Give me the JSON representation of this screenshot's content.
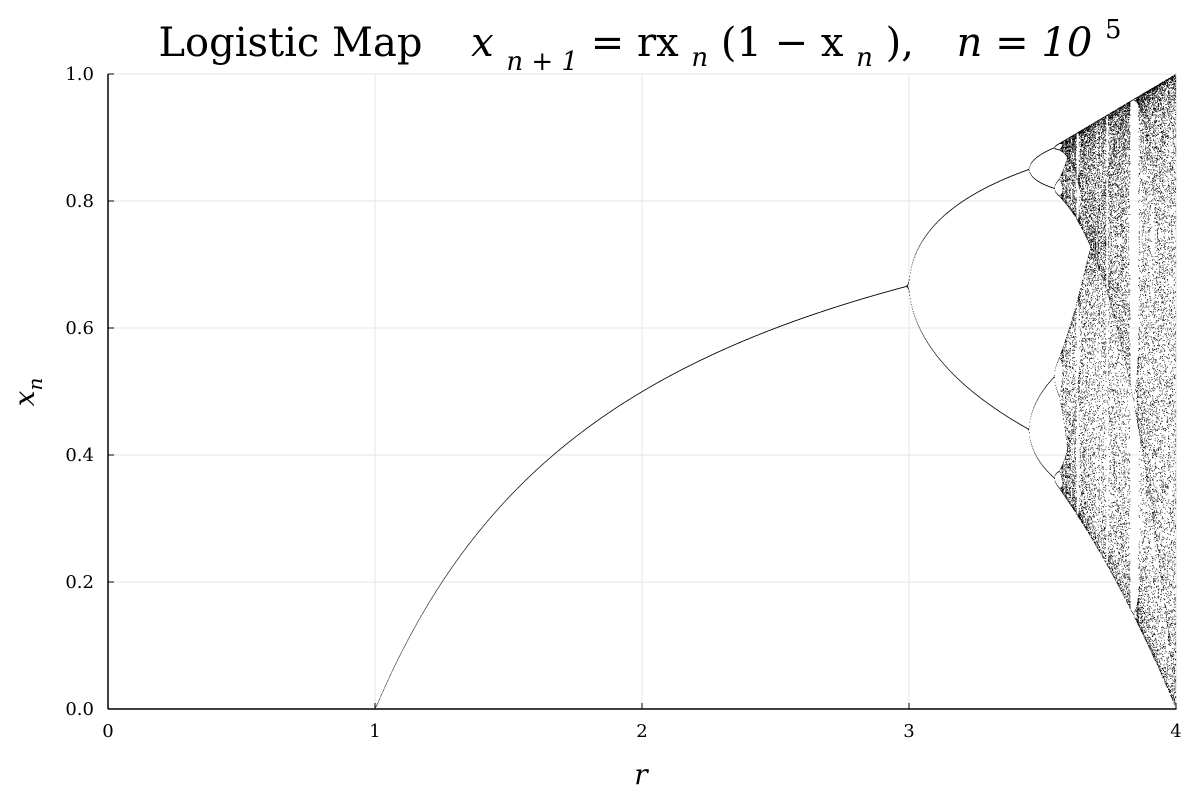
{
  "chart_data": {
    "type": "scatter",
    "title": {
      "prefix": "Logistic Map",
      "equation_lhs_var": "x",
      "equation_lhs_sub": "n + 1",
      "equation_rhs_a": " = rx",
      "equation_rhs_sub1": "n",
      "equation_rhs_b": "(1 − x",
      "equation_rhs_sub2": "n",
      "equation_rhs_c": "),",
      "n_label": "n = 10",
      "n_exp": "5"
    },
    "xlabel": "r",
    "ylabel_var": "x",
    "ylabel_sub": "n",
    "xlim": [
      0,
      4
    ],
    "ylim": [
      0,
      1
    ],
    "xticks": [
      0,
      1,
      2,
      3,
      4
    ],
    "xtick_labels": [
      "0",
      "1",
      "2",
      "3",
      "4"
    ],
    "yticks": [
      0,
      0.2,
      0.4,
      0.6,
      0.8,
      1.0
    ],
    "ytick_labels": [
      "0.0",
      "0.2",
      "0.4",
      "0.6",
      "0.8",
      "1.0"
    ],
    "grid": true,
    "legend": "none",
    "series": [
      {
        "map": "x_{n+1} = r x_n (1 - x_n)",
        "r_range": [
          1,
          4
        ],
        "iterations": 100000,
        "color": "#000000",
        "key_points": [
          {
            "r": 1.0,
            "x": 0.0
          },
          {
            "r": 2.0,
            "x": 0.5
          },
          {
            "r": 3.0,
            "x": 0.667
          },
          {
            "r": 3.449,
            "x": [
              0.44,
              0.85
            ]
          },
          {
            "r": 3.544,
            "x": [
              0.365,
              0.519,
              0.812,
              0.885
            ]
          },
          {
            "r": 4.0,
            "x": [
              0.0,
              1.0
            ]
          }
        ]
      }
    ]
  }
}
